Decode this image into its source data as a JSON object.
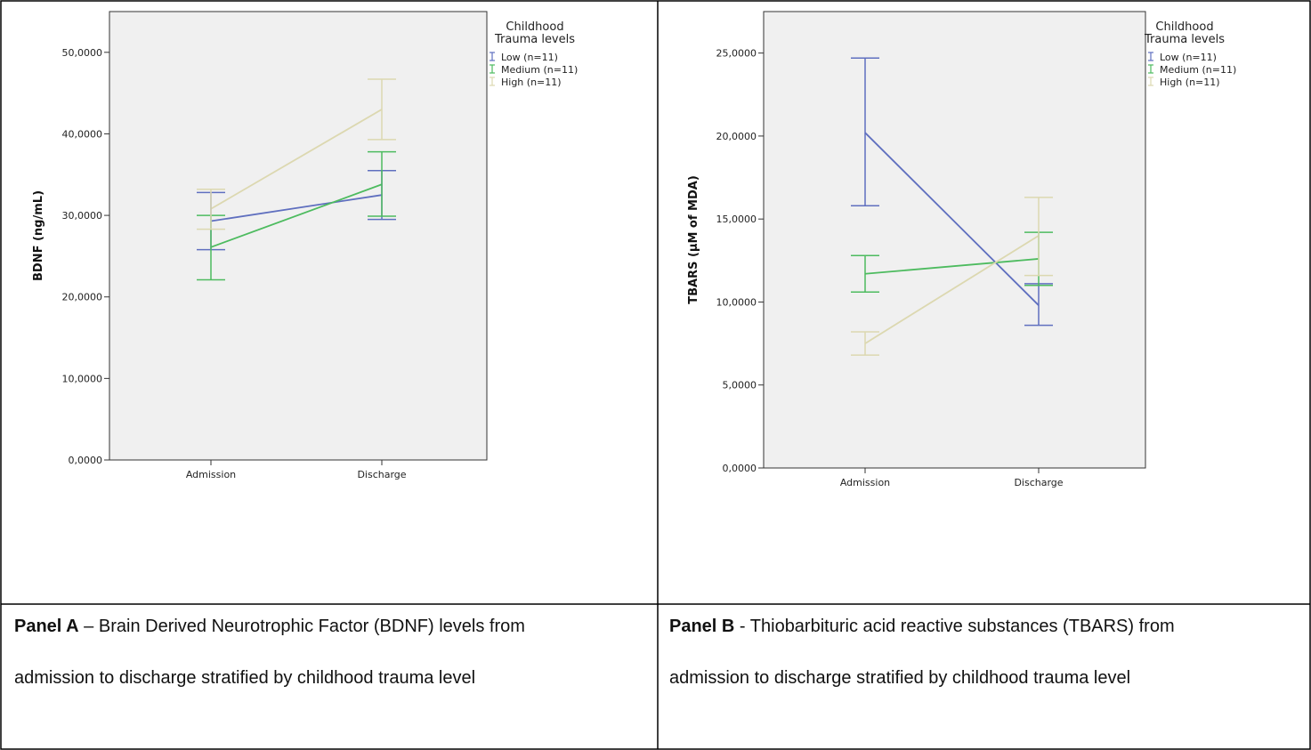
{
  "legend_title_line1": "Childhood",
  "legend_title_line2": "Trauma levels",
  "colors": {
    "low": "#5f6fbf",
    "medium": "#4dbb5f",
    "high": "#dcd8b0",
    "plot_bg": "#f0f0f0"
  },
  "panels": [
    {
      "caption_label": "Panel A",
      "caption_sep": " – ",
      "caption_line1": "Brain Derived Neurotrophic Factor (BDNF) levels from",
      "caption_line2": "admission to discharge stratified by childhood trauma level"
    },
    {
      "caption_label": "Panel B",
      "caption_sep": " - ",
      "caption_line1": "Thiobarbituric acid reactive substances (TBARS) from",
      "caption_line2": "admission to discharge stratified by childhood trauma level"
    }
  ],
  "chart_data": [
    {
      "type": "line",
      "ylabel": "BDNF (ng/mL)",
      "xlabel": "",
      "categories": [
        "Admission",
        "Discharge"
      ],
      "ylim": [
        0,
        55
      ],
      "yticks": [
        0,
        10,
        20,
        30,
        40,
        50
      ],
      "ytick_labels": [
        "0,0000",
        "10,0000",
        "20,0000",
        "30,0000",
        "40,0000",
        "50,0000"
      ],
      "grid": false,
      "legend_position": "top-right outside",
      "series": [
        {
          "name": "Low (n=11)",
          "key": "low",
          "means": [
            29.3,
            32.5
          ],
          "lower": [
            25.8,
            29.5
          ],
          "upper": [
            32.8,
            35.5
          ]
        },
        {
          "name": "Medium (n=11)",
          "key": "medium",
          "means": [
            26.1,
            33.8
          ],
          "lower": [
            22.1,
            29.9
          ],
          "upper": [
            30.0,
            37.8
          ]
        },
        {
          "name": "High (n=11)",
          "key": "high",
          "means": [
            30.8,
            43.0
          ],
          "lower": [
            28.3,
            39.3
          ],
          "upper": [
            33.2,
            46.7
          ]
        }
      ]
    },
    {
      "type": "line",
      "ylabel": "TBARS (µM of MDA)",
      "xlabel": "",
      "categories": [
        "Admission",
        "Discharge"
      ],
      "ylim": [
        0,
        27.5
      ],
      "yticks": [
        0,
        5,
        10,
        15,
        20,
        25
      ],
      "ytick_labels": [
        "0,0000",
        "5,0000",
        "10,0000",
        "15,0000",
        "20,0000",
        "25,0000"
      ],
      "grid": false,
      "legend_position": "top-right outside",
      "series": [
        {
          "name": "Low (n=11)",
          "key": "low",
          "means": [
            20.2,
            9.8
          ],
          "lower": [
            15.8,
            8.6
          ],
          "upper": [
            24.7,
            11.1
          ]
        },
        {
          "name": "Medium (n=11)",
          "key": "medium",
          "means": [
            11.7,
            12.6
          ],
          "lower": [
            10.6,
            11.0
          ],
          "upper": [
            12.8,
            14.2
          ]
        },
        {
          "name": "High (n=11)",
          "key": "high",
          "means": [
            7.5,
            14.0
          ],
          "lower": [
            6.8,
            11.6
          ],
          "upper": [
            8.2,
            16.3
          ]
        }
      ]
    }
  ]
}
